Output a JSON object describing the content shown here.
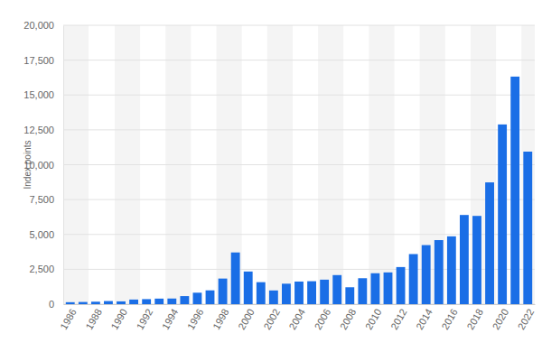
{
  "chart_data": {
    "type": "bar",
    "y_label": "Index points",
    "categories": [
      "1986",
      null,
      "1988",
      null,
      "1990",
      null,
      "1992",
      null,
      "1994",
      null,
      "1996",
      null,
      "1998",
      null,
      "2000",
      null,
      "2002",
      null,
      "2004",
      null,
      "2006",
      null,
      "2008",
      null,
      "2010",
      null,
      "2012",
      null,
      "2014",
      null,
      "2016",
      null,
      "2018",
      null,
      "2020",
      null,
      "2022"
    ],
    "values": [
      141,
      156,
      177,
      223,
      200,
      331,
      361,
      398,
      404,
      577,
      822,
      990,
      1836,
      3708,
      2342,
      1577,
      984,
      1468,
      1622,
      1645,
      1757,
      2085,
      1212,
      1860,
      2218,
      2278,
      2661,
      3592,
      4236,
      4594,
      4864,
      6396,
      6330,
      8733,
      12888,
      16320,
      10940
    ],
    "color": "#1a6ee6",
    "ylim": [
      0,
      20000
    ],
    "yticks": [
      0,
      {
        "value": 2500,
        "label": "2,500"
      },
      {
        "value": 5000,
        "label": "5,000"
      },
      {
        "value": 7500,
        "label": "7,500"
      },
      {
        "value": 10000,
        "label": "10,000"
      },
      {
        "value": 12500,
        "label": "12,500"
      },
      {
        "value": 15000,
        "label": "15,000"
      },
      {
        "value": 17500,
        "label": "17,500"
      },
      {
        "value": 20000,
        "label": "20,000"
      }
    ],
    "grid": true
  }
}
